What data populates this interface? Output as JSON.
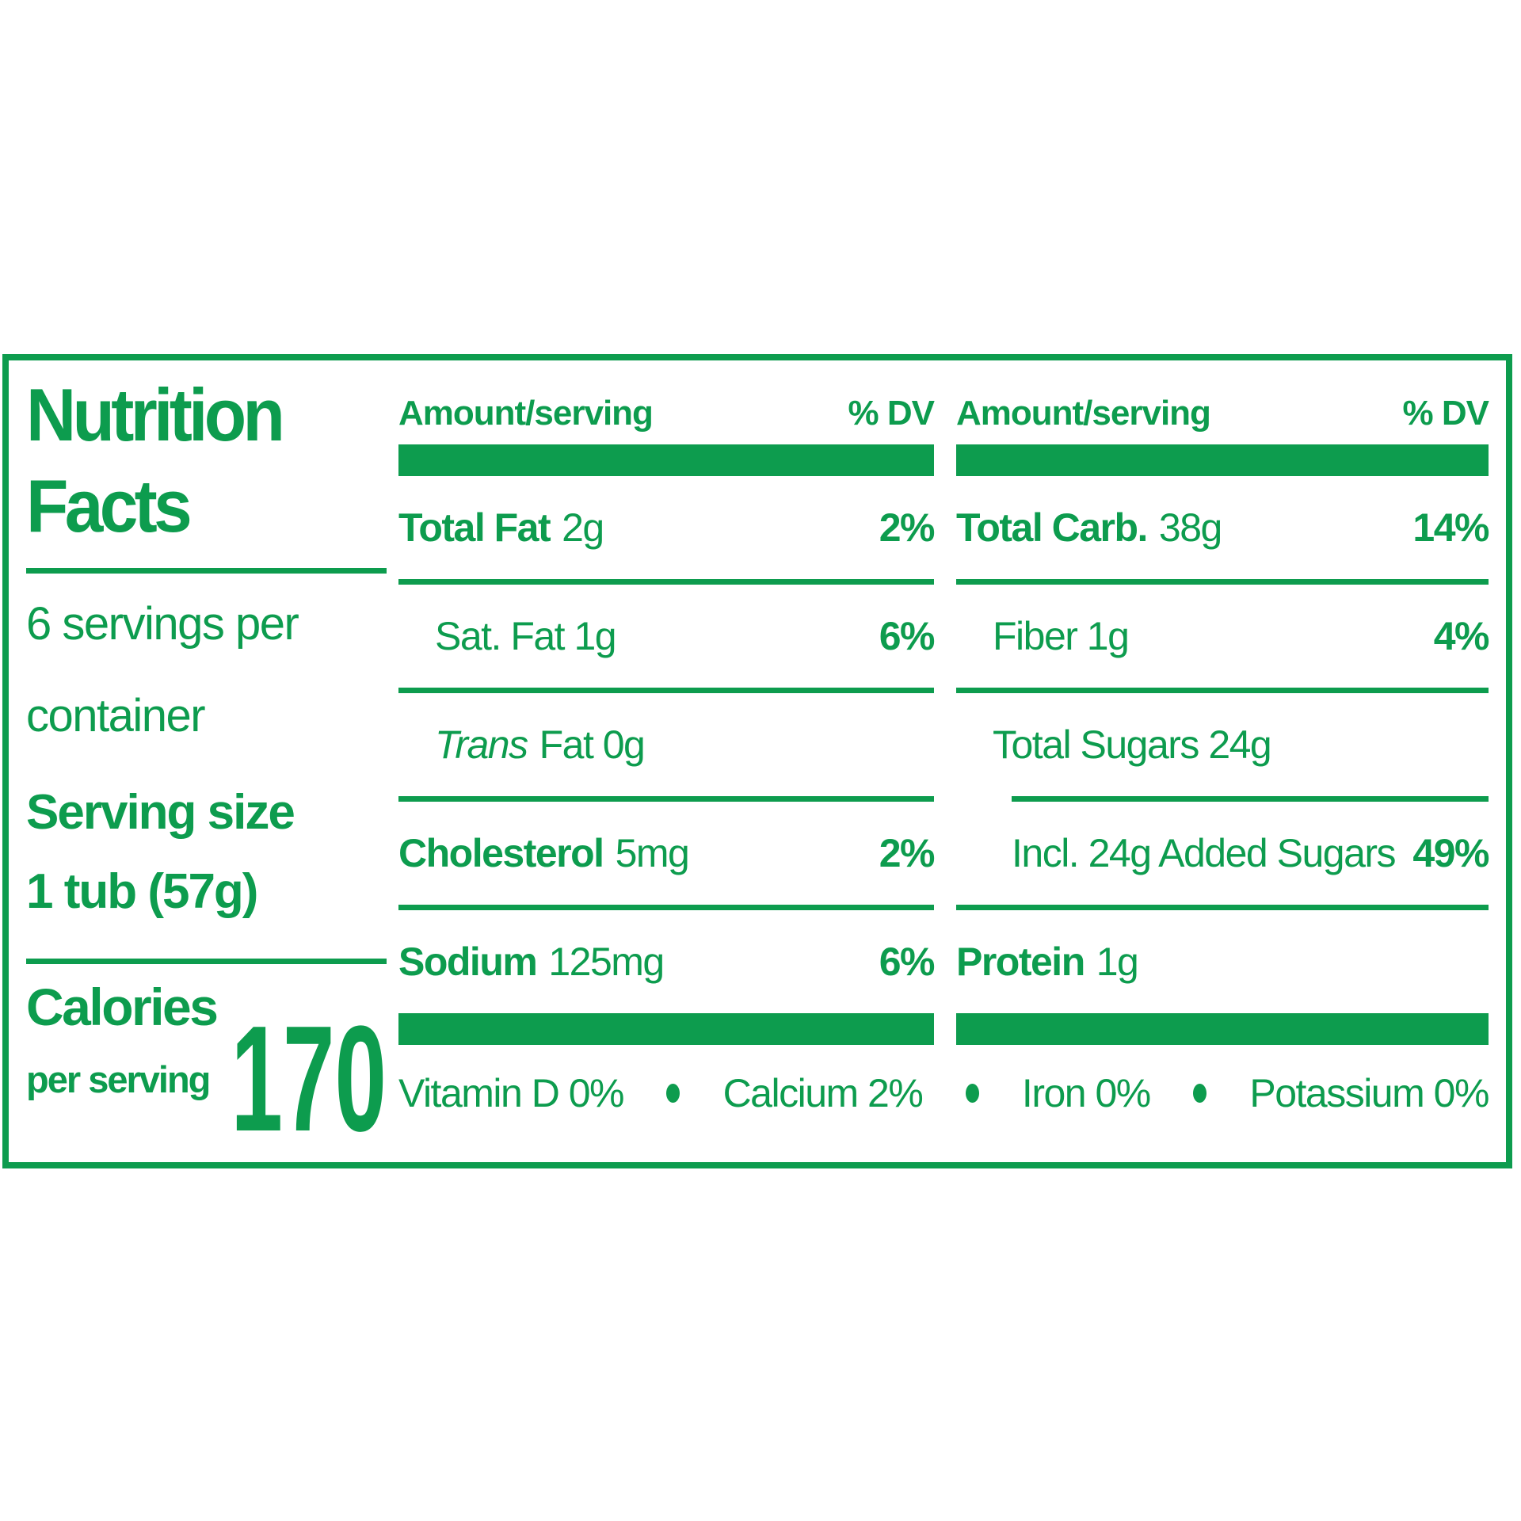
{
  "colors": {
    "green": "#0D9C4E"
  },
  "nutrition": {
    "title1": "Nutrition",
    "title2": "Facts",
    "servings1": "6 servings per",
    "servings2": "container",
    "serving_size1": "Serving size",
    "serving_size2": "1 tub (57g)",
    "calories_word": "Calories",
    "calories_sub": "per serving",
    "calories_value": "170",
    "header_amount": "Amount/serving",
    "header_dv": "% DV",
    "mid_rows": [
      {
        "name": "Total Fat",
        "amount": "2g",
        "dv": "2%"
      },
      {
        "name": "Sat. Fat 1g",
        "dv": "6%"
      },
      {
        "name_italic": "Trans",
        "amount": "Fat 0g",
        "dv": ""
      },
      {
        "name": "Cholesterol",
        "amount": "5mg",
        "dv": "2%"
      },
      {
        "name": "Sodium",
        "amount": "125mg",
        "dv": "6%"
      }
    ],
    "right_rows": [
      {
        "name": "Total Carb.",
        "amount": "38g",
        "dv": "14%"
      },
      {
        "name": "Fiber 1g",
        "dv": "4%"
      },
      {
        "name": "Total Sugars 24g",
        "dv": ""
      },
      {
        "name": "Incl. 24g Added Sugars",
        "dv": "49%"
      },
      {
        "name": "Protein",
        "amount": "1g",
        "dv": ""
      }
    ],
    "micros": [
      "Vitamin D 0%",
      "Calcium 2%",
      "Iron 0%",
      "Potassium 0%"
    ]
  }
}
